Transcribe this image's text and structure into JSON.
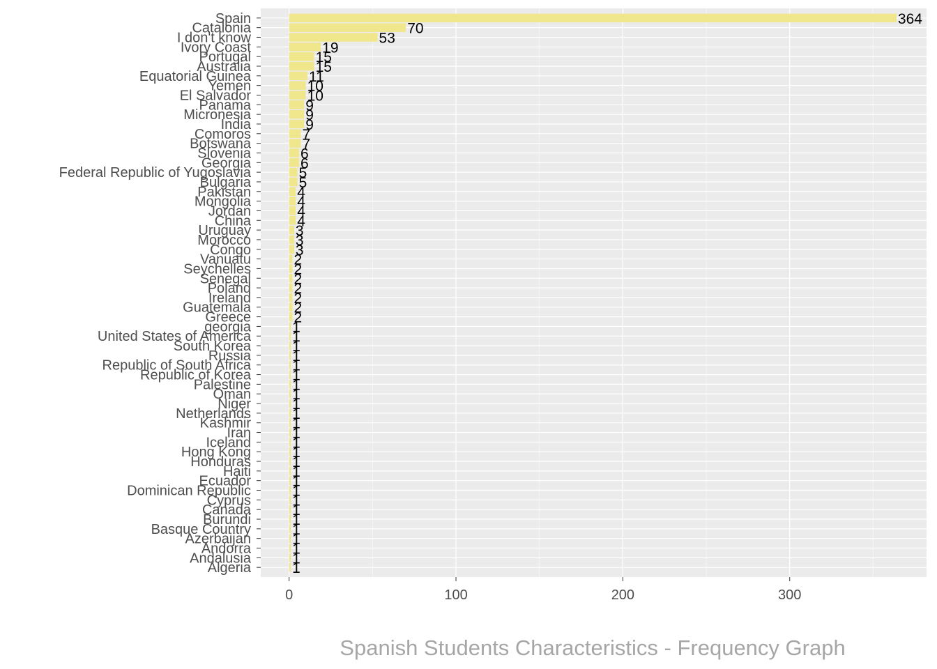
{
  "chart_data": {
    "type": "bar",
    "orientation": "horizontal",
    "caption": "Spanish Students Characteristics - Frequency Graph",
    "title": "",
    "xlabel": "",
    "ylabel": "",
    "xlim": [
      -17,
      382
    ],
    "xticks": [
      0,
      100,
      200,
      300
    ],
    "grid": true,
    "legend": "none",
    "colors": {
      "bar_fill": "#f0e68c",
      "panel_background": "#ebebeb",
      "grid_major": "#ffffff",
      "grid_minor": "#f5f5f5",
      "tick_text": "#4d4d4d",
      "data_label": "#000000",
      "caption": "#a6a6a6"
    },
    "categories": [
      "Spain",
      "Catalonia",
      "I don't know",
      "Ivory Coast",
      "Portugal",
      "Australia",
      "Equatorial Guinea",
      "Yemen",
      "El Salvador",
      "Panama",
      "Micronesia",
      "India",
      "Comoros",
      "Botswana",
      "Slovenia",
      "Georgia",
      "Federal Republic of Yugoslavia",
      "Bulgaria",
      "Pakistan",
      "Mongolia",
      "Jordan",
      "China",
      "Uruguay",
      "Morocco",
      "Congo",
      "Vanuatu",
      "Seychelles",
      "Senegal",
      "Poland",
      "Ireland",
      "Guatemala",
      "Greece",
      "georgia",
      "United States of America",
      "South Korea",
      "Russia",
      "Republic of South Africa",
      "Republic of Korea",
      "Palestine",
      "Oman",
      "Niger",
      "Netherlands",
      "Kashmir",
      "Iran",
      "Iceland",
      "Hong Kong",
      "Honduras",
      "Haiti",
      "Ecuador",
      "Dominican Republic",
      "Cyprus",
      "Canada",
      "Burundi",
      "Basque Country",
      "Azerbaijan",
      "Andorra",
      "Andalusia",
      "Algeria"
    ],
    "values": [
      364,
      70,
      53,
      19,
      15,
      15,
      11,
      10,
      10,
      9,
      9,
      9,
      7,
      7,
      6,
      6,
      5,
      5,
      4,
      4,
      4,
      4,
      3,
      3,
      3,
      2,
      2,
      2,
      2,
      2,
      2,
      2,
      1,
      1,
      1,
      1,
      1,
      1,
      1,
      1,
      1,
      1,
      1,
      1,
      1,
      1,
      1,
      1,
      1,
      1,
      1,
      1,
      1,
      1,
      1,
      1,
      1,
      1
    ]
  }
}
